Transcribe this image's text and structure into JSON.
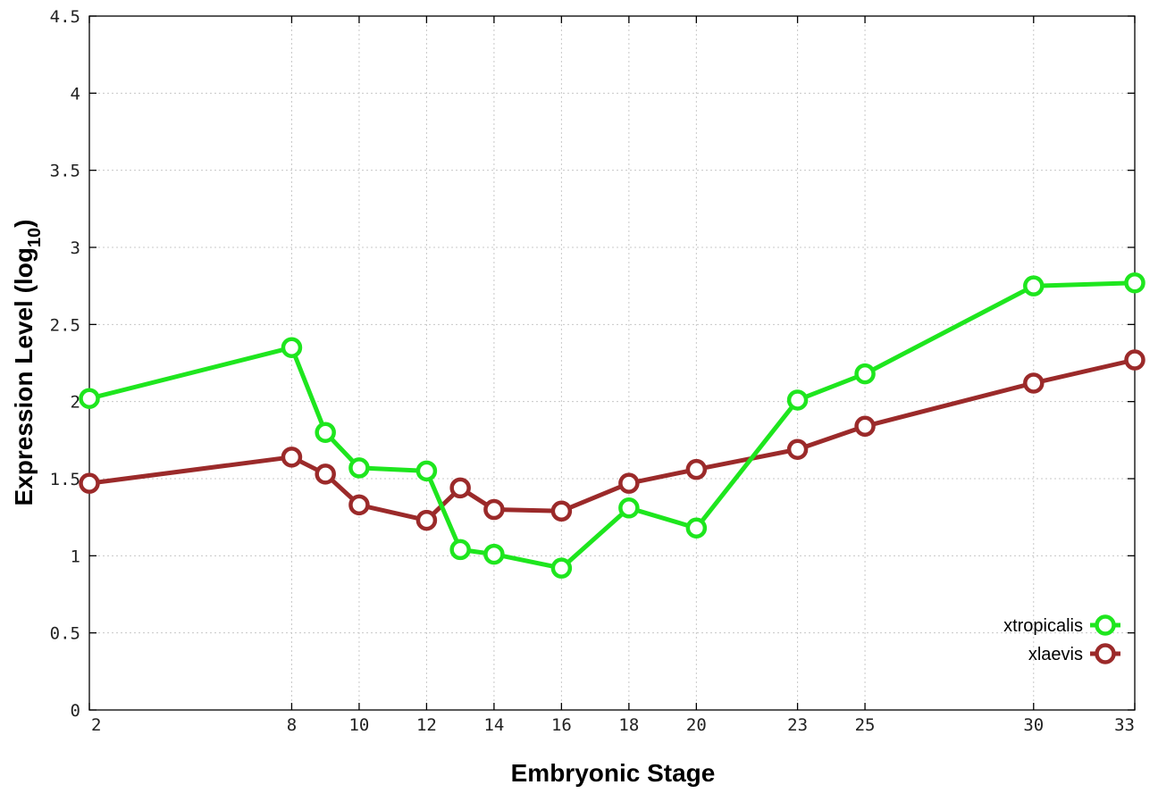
{
  "chart_data": {
    "type": "line",
    "xlabel": "Embryonic Stage",
    "ylabel_main": "Expression Level (log",
    "ylabel_sub": "10",
    "ylabel_close": ")",
    "xlim": [
      2,
      33
    ],
    "ylim": [
      0,
      4.5
    ],
    "x_ticks": [
      2,
      8,
      10,
      12,
      14,
      16,
      18,
      20,
      23,
      25,
      30,
      33
    ],
    "y_ticks": [
      0,
      0.5,
      1,
      1.5,
      2,
      2.5,
      3,
      3.5,
      4,
      4.5
    ],
    "x_tick_labels": [
      "2",
      "8",
      "10",
      "12",
      "14",
      "16",
      "18",
      "20",
      "23",
      "25",
      "30",
      "33"
    ],
    "y_tick_labels": [
      "0",
      "0.5",
      "1",
      "1.5",
      "2",
      "2.5",
      "3",
      "3.5",
      "4",
      "4.5"
    ],
    "grid": true,
    "legend_position": "bottom-right",
    "series": [
      {
        "name": "xtropicalis",
        "color": "#1ee61e",
        "x": [
          2,
          8,
          9,
          10,
          12,
          13,
          14,
          16,
          18,
          20,
          23,
          25,
          30,
          33
        ],
        "y": [
          2.02,
          2.35,
          1.8,
          1.57,
          1.55,
          1.04,
          1.01,
          0.92,
          1.31,
          1.18,
          2.01,
          2.18,
          2.75,
          2.77
        ]
      },
      {
        "name": "xlaevis",
        "color": "#9b2a2a",
        "x": [
          2,
          8,
          9,
          10,
          12,
          13,
          14,
          16,
          18,
          20,
          23,
          25,
          30,
          33
        ],
        "y": [
          1.47,
          1.64,
          1.53,
          1.33,
          1.23,
          1.44,
          1.3,
          1.29,
          1.47,
          1.56,
          1.69,
          1.84,
          2.12,
          2.27
        ]
      }
    ]
  }
}
